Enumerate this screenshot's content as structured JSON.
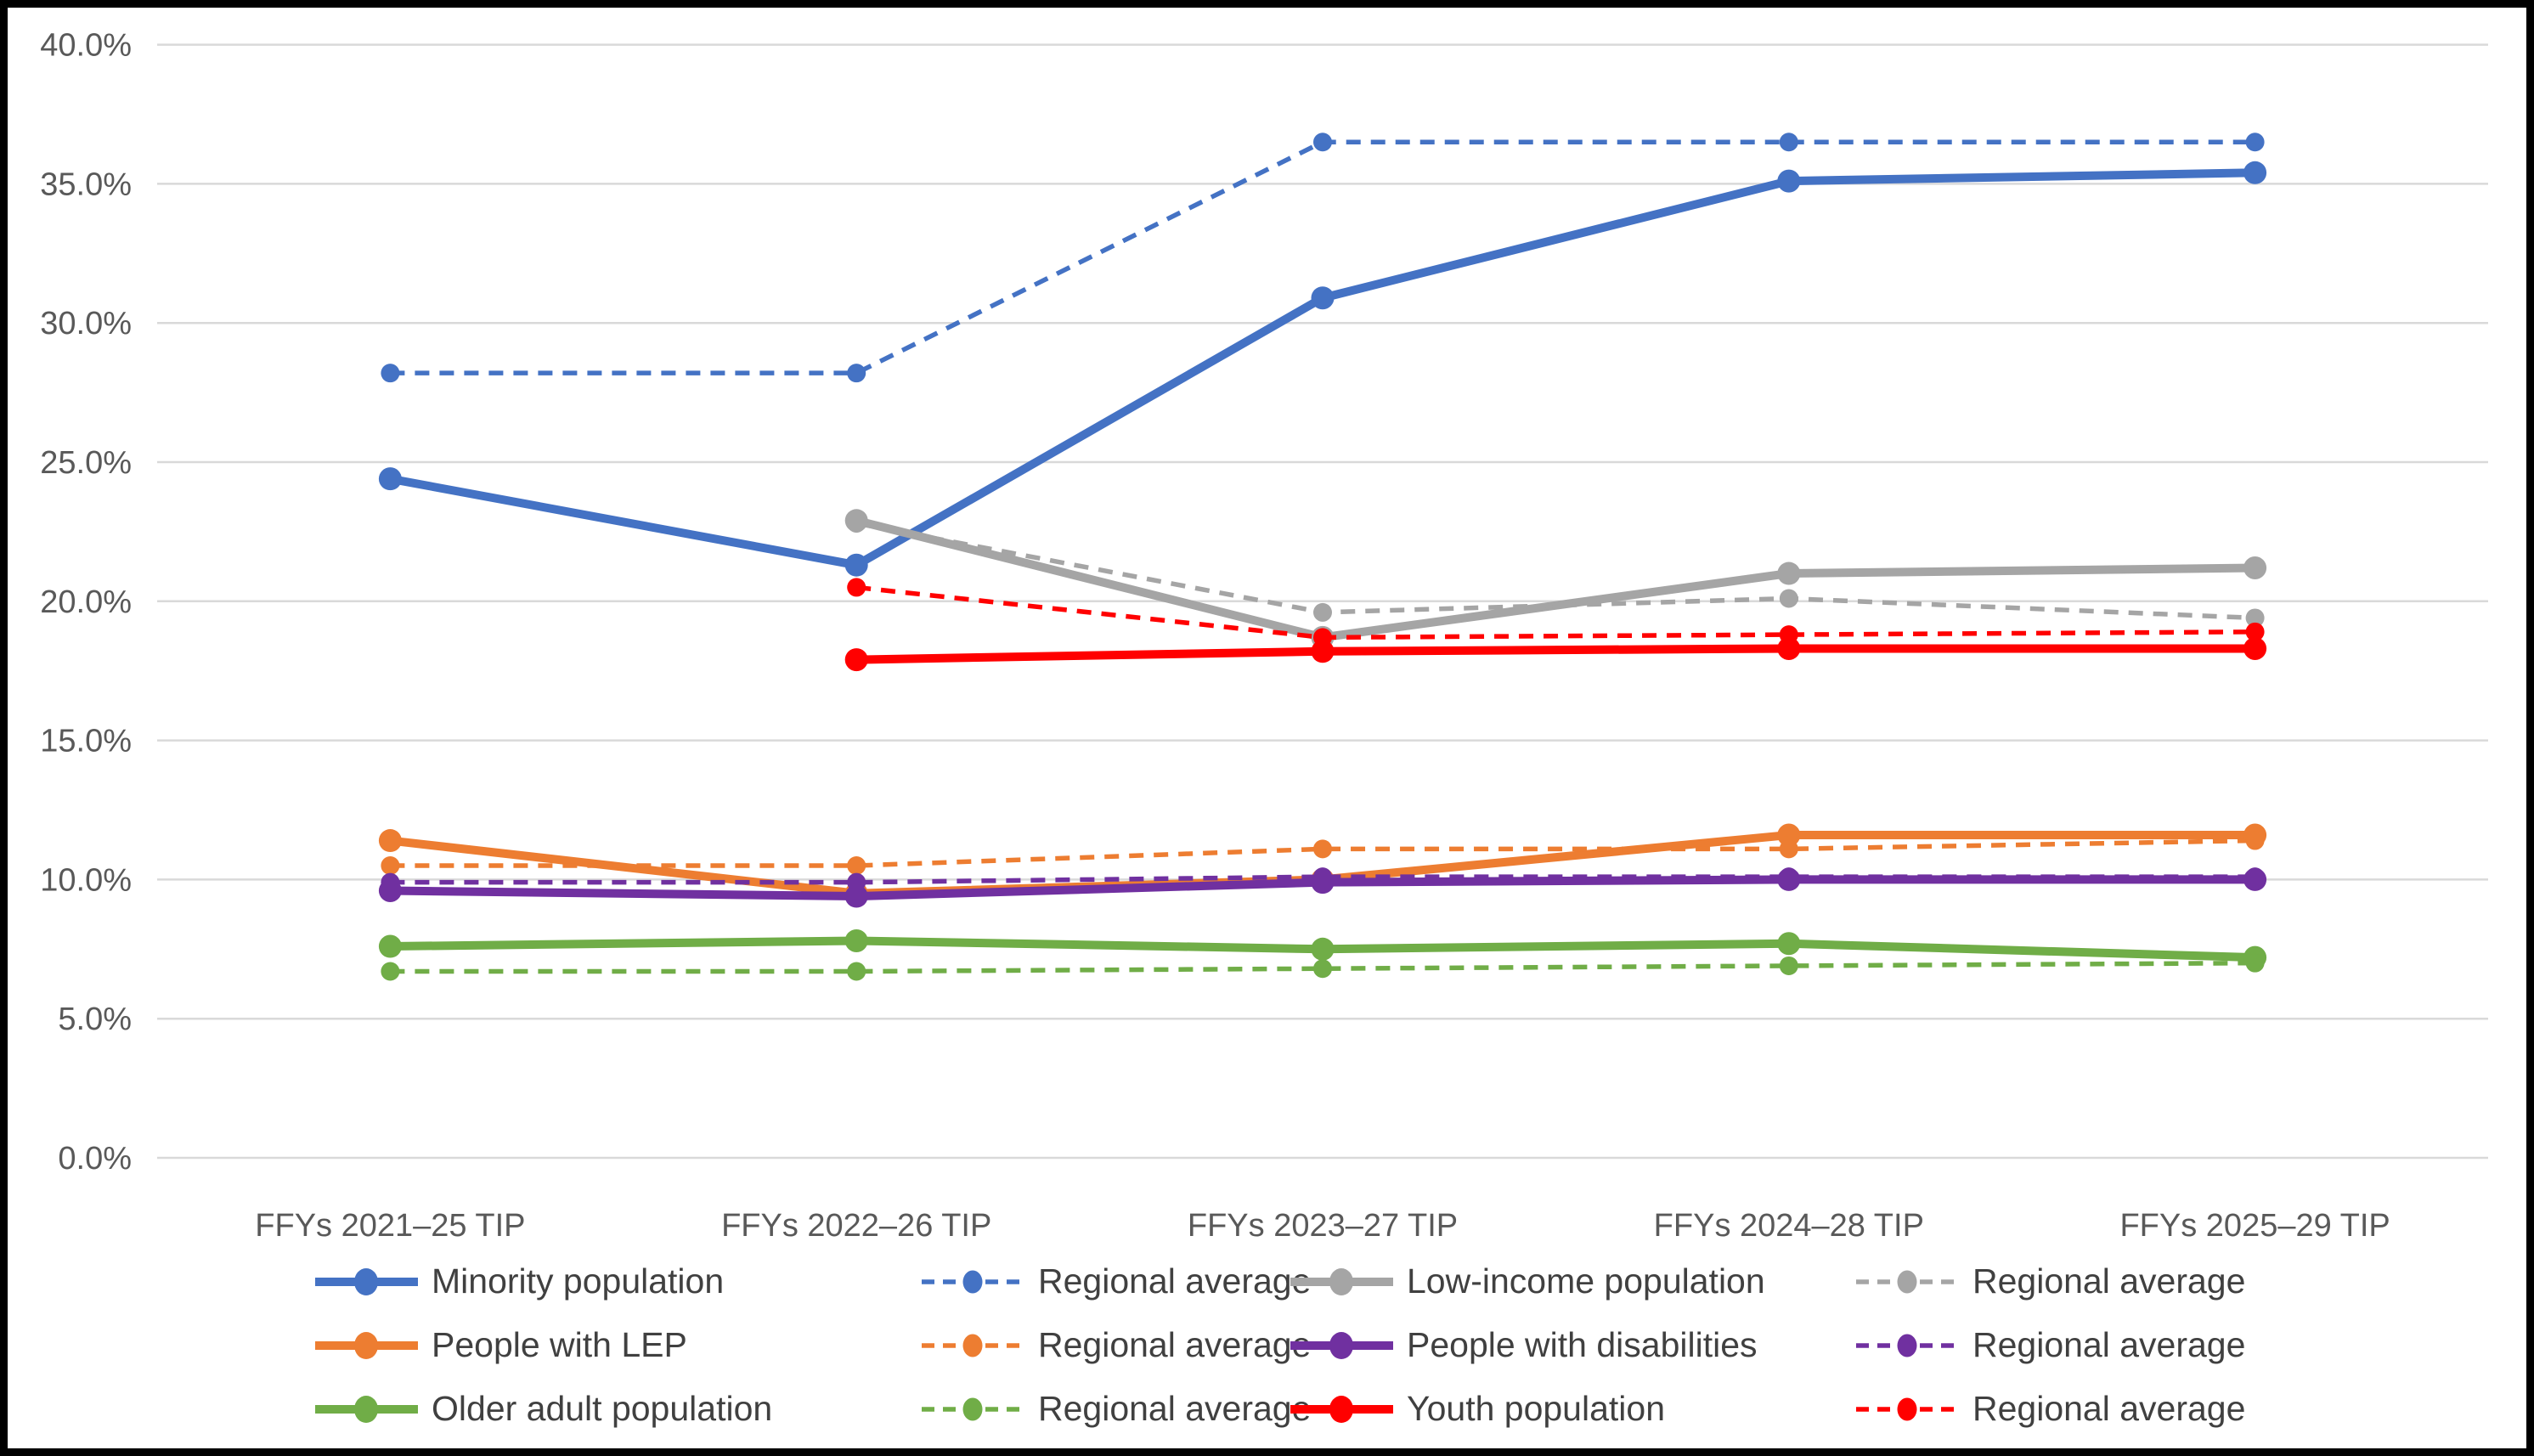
{
  "chart_data": {
    "type": "line",
    "title": "",
    "xlabel": "",
    "ylabel": "",
    "categories": [
      "FFYs 2021–25 TIP",
      "FFYs 2022–26 TIP",
      "FFYs 2023–27 TIP",
      "FFYs 2024–28 TIP",
      "FFYs 2025–29 TIP"
    ],
    "y_axis": {
      "min": 0,
      "max": 40,
      "step": 5,
      "tick_labels": [
        "0.0%",
        "5.0%",
        "10.0%",
        "15.0%",
        "20.0%",
        "25.0%",
        "30.0%",
        "35.0%",
        "40.0%"
      ]
    },
    "grid": true,
    "legend_position": "bottom",
    "series": [
      {
        "name": "Minority population",
        "color": "#4472C4",
        "style": "solid",
        "values": [
          24.4,
          21.3,
          30.9,
          35.1,
          35.4
        ]
      },
      {
        "name": "Regional average",
        "color": "#4472C4",
        "style": "dashed",
        "values": [
          28.2,
          28.2,
          36.5,
          36.5,
          36.5
        ]
      },
      {
        "name": "Low-income population",
        "color": "#A5A5A5",
        "style": "solid",
        "values": [
          null,
          22.9,
          18.7,
          21.0,
          21.2
        ]
      },
      {
        "name": "Regional average",
        "color": "#A5A5A5",
        "style": "dashed",
        "values": [
          null,
          22.8,
          19.6,
          20.1,
          19.4
        ]
      },
      {
        "name": "People with LEP",
        "color": "#ED7D31",
        "style": "solid",
        "values": [
          11.4,
          9.5,
          10.0,
          11.6,
          11.6
        ]
      },
      {
        "name": "Regional average",
        "color": "#ED7D31",
        "style": "dashed",
        "values": [
          10.5,
          10.5,
          11.1,
          11.1,
          11.4
        ]
      },
      {
        "name": "People with disabilities",
        "color": "#7030A0",
        "style": "solid",
        "values": [
          9.6,
          9.4,
          9.9,
          10.0,
          10.0
        ]
      },
      {
        "name": "Regional average",
        "color": "#7030A0",
        "style": "dashed",
        "values": [
          9.9,
          9.9,
          10.1,
          10.1,
          10.1
        ]
      },
      {
        "name": "Older adult population",
        "color": "#70AD47",
        "style": "solid",
        "values": [
          7.6,
          7.8,
          7.5,
          7.7,
          7.2
        ]
      },
      {
        "name": "Regional average",
        "color": "#70AD47",
        "style": "dashed",
        "values": [
          6.7,
          6.7,
          6.8,
          6.9,
          7.0
        ]
      },
      {
        "name": "Youth population",
        "color": "#FF0000",
        "style": "solid",
        "values": [
          null,
          17.9,
          18.2,
          18.3,
          18.3
        ]
      },
      {
        "name": "Regional average",
        "color": "#FF0000",
        "style": "dashed",
        "values": [
          null,
          20.5,
          18.7,
          18.8,
          18.9
        ]
      }
    ],
    "legend_rows": [
      [
        0,
        1,
        2,
        3
      ],
      [
        4,
        5,
        6,
        7
      ],
      [
        8,
        9,
        10,
        11
      ]
    ]
  },
  "style": {
    "gridline_color": "#D9D9D9",
    "axis_text_color": "#595959",
    "legend_text_color": "#404040",
    "background": "#FFFFFF",
    "frame_color": "#000000"
  }
}
